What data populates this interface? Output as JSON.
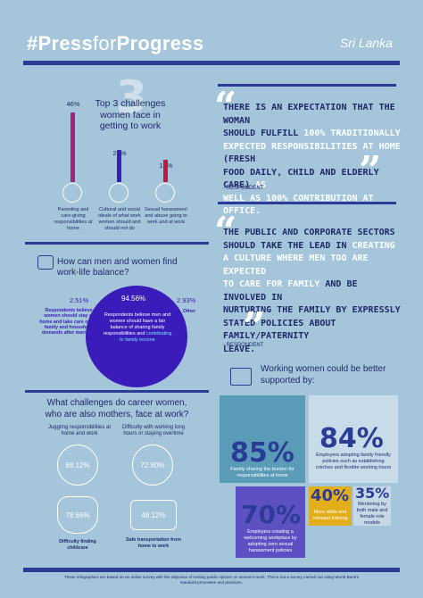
{
  "header": {
    "hashtag": "#",
    "press": "Press",
    "for": "for",
    "progress": "Progress",
    "country": "Sri Lanka"
  },
  "challenges": {
    "big_number": "3",
    "title": "Top 3 challenges women face in getting to work",
    "items": [
      {
        "pct": "46%",
        "value": 46,
        "label": "Parenting and care-giving responsibilities at home",
        "color": "#a4237f"
      },
      {
        "pct": "21%",
        "value": 21,
        "label": "Cultural and social ideals of what work women should and should not do",
        "color": "#3a1cbb"
      },
      {
        "pct": "15%",
        "value": 15,
        "label": "Sexual harassment and abuse going to work and at work",
        "color": "#c2163c"
      }
    ]
  },
  "quote1": {
    "lines": [
      [
        {
          "t": "There is an expectation that the woman",
          "hl": false
        }
      ],
      [
        {
          "t": "should fulfill ",
          "hl": false
        },
        {
          "t": "100% traditionally",
          "hl": true
        }
      ],
      [
        {
          "t": "expected responsibilities at home",
          "hl": true
        },
        {
          "t": " (fresh",
          "hl": false
        }
      ],
      [
        {
          "t": "food daily, child and elderly care)",
          "hl": false
        },
        {
          "t": " as",
          "hl": true
        }
      ],
      [
        {
          "t": "well as 100% contribution at office.",
          "hl": true
        }
      ]
    ],
    "attribution": "- RESPONDENT"
  },
  "quote2": {
    "lines": [
      [
        {
          "t": "The public and corporate sectors",
          "hl": false
        }
      ],
      [
        {
          "t": "should take the lead in ",
          "hl": false
        },
        {
          "t": "creating",
          "hl": true
        }
      ],
      [
        {
          "t": "a culture where men too are expected",
          "hl": true
        }
      ],
      [
        {
          "t": "to care for family",
          "hl": true
        },
        {
          "t": " and be involved in",
          "hl": false
        }
      ],
      [
        {
          "t": "nurturing the family by expressly",
          "hl": false
        }
      ],
      [
        {
          "t": "stated policies about family/paternity",
          "hl": false
        }
      ],
      [
        {
          "t": "leave.",
          "hl": false
        }
      ]
    ],
    "attribution": "- RESPONDENT"
  },
  "balance": {
    "question": "How can men and women find work-life balance?",
    "left_pct": "2.51%",
    "left_text": "Respondents believe women should stay at home and take care of the family and household demands after marriage",
    "center_pct": "94.56%",
    "center_text": "Respondents believe men and women should have a fair balance of sharing family responsibilities and",
    "center_hl": "contributing to family income",
    "right_pct": "2.93%",
    "right_text": "Other"
  },
  "mothers": {
    "question": "What challenges do career women, who are also mothers, face at work?",
    "items": [
      {
        "head": "Juggling responsibilities at home and work",
        "value": "89.12%",
        "foot": ""
      },
      {
        "head": "Difficulty with working long hours or staying overtime",
        "value": "72.80%",
        "foot": ""
      },
      {
        "head": "",
        "value": "78.66%",
        "foot": "Difficulty finding childcare"
      },
      {
        "head": "",
        "value": "48.12%",
        "foot": "Safe transportation from home to work"
      }
    ]
  },
  "support": {
    "title": "Working women could be better supported by:",
    "boxes": [
      {
        "pct": "85%",
        "text": "Family sharing the burden for responsibilities at home",
        "bg": "#5a9bb8"
      },
      {
        "pct": "84%",
        "text": "Employers adopting family friendly policies such as establishing crèches and flexible working hours",
        "bg": "#c8dbe8"
      },
      {
        "pct": "70%",
        "text": "Employers creating a welcoming workplace by adopting zero sexual harassment policies",
        "bg": "#5c50c2"
      },
      {
        "pct": "40%",
        "text": "More skills and relevant training",
        "bg": "#e3ae1c"
      },
      {
        "pct": "35%",
        "text": "Mentoring by both male and female role models",
        "bg": "#c6d8e5"
      }
    ]
  },
  "footer": "These infographics are based on an online survey with the objective of inviting public opinion on women's work. This is not a survey carried out using World Bank's standard processes and practices."
}
